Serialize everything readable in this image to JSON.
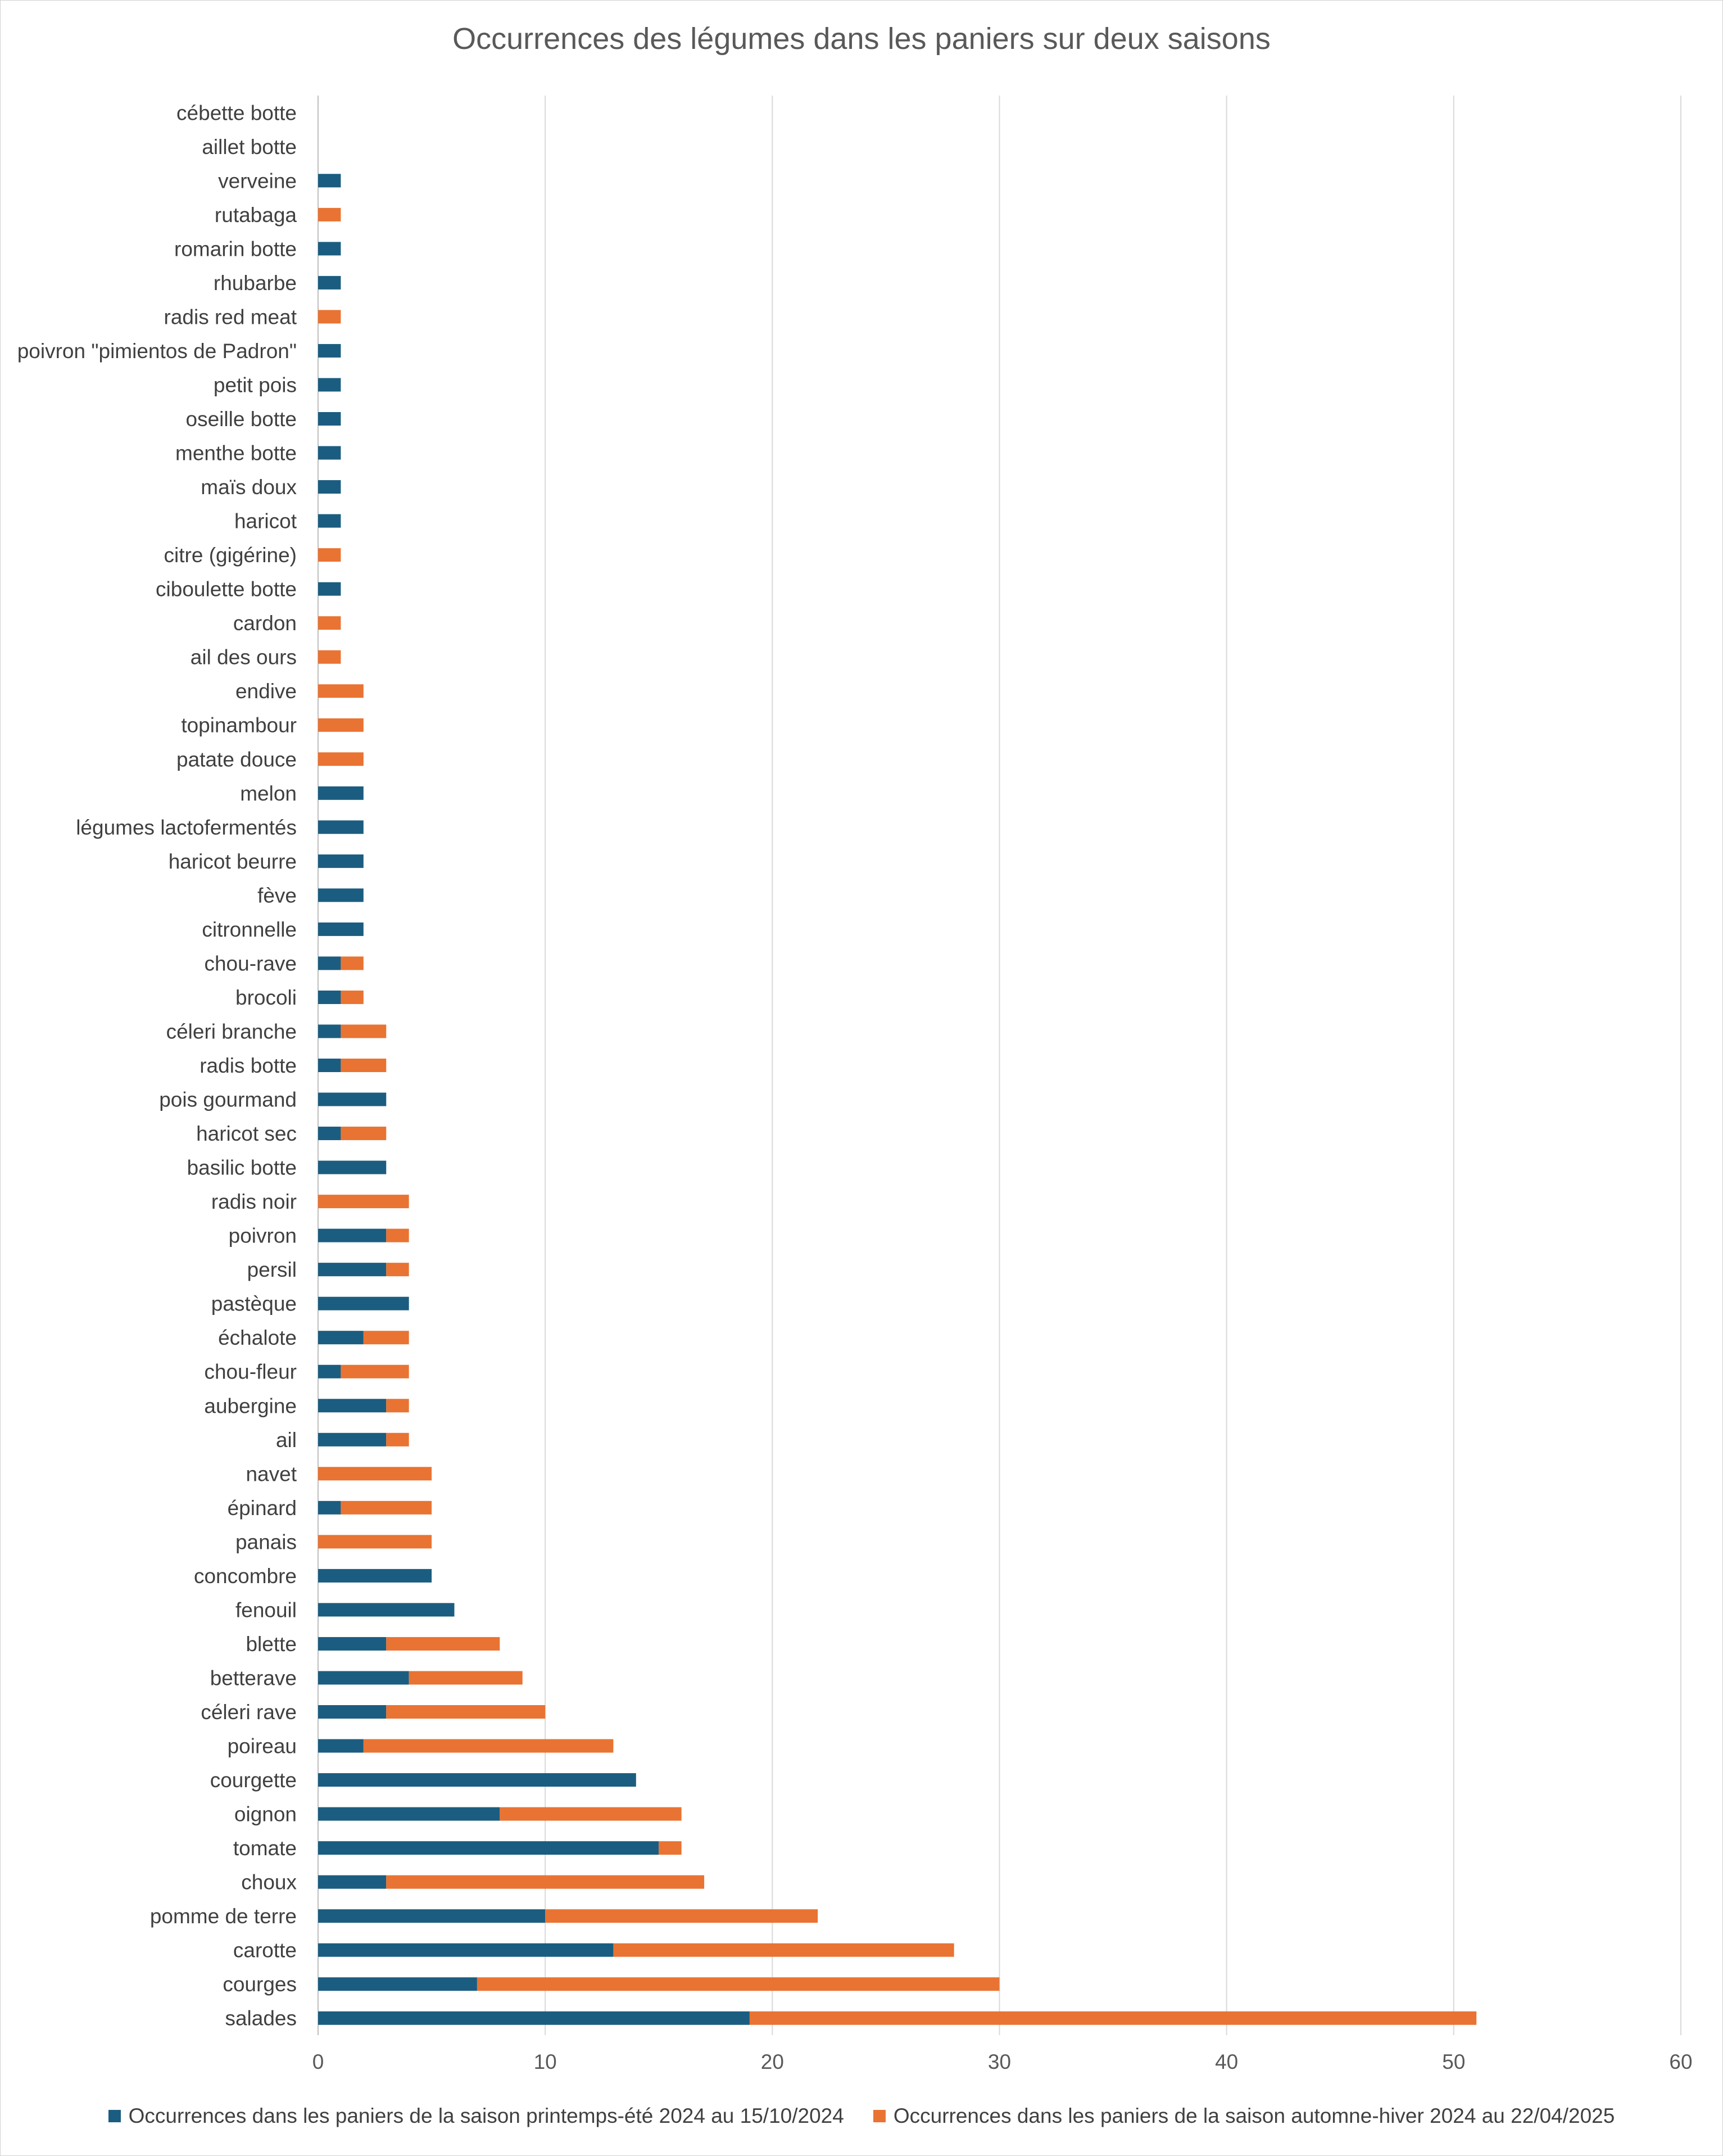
{
  "chart_data": {
    "type": "bar",
    "orientation": "horizontal",
    "stacked": true,
    "title": "Occurrences des légumes dans les paniers sur deux saisons",
    "xlim": [
      0,
      60
    ],
    "x_ticks": [
      0,
      10,
      20,
      30,
      40,
      50,
      60
    ],
    "grid": true,
    "legend_position": "bottom",
    "categories": [
      "cébette botte",
      "aillet botte",
      "verveine",
      "rutabaga",
      "romarin botte",
      "rhubarbe",
      "radis red meat",
      "poivron \"pimientos de Padron\"",
      "petit pois",
      "oseille botte",
      "menthe botte",
      "maïs doux",
      "haricot",
      "citre (gigérine)",
      "ciboulette botte",
      "cardon",
      "ail des ours",
      "endive",
      "topinambour",
      "patate douce",
      "melon",
      "légumes lactofermentés",
      "haricot beurre",
      "fève",
      "citronnelle",
      "chou-rave",
      "brocoli",
      "céleri branche",
      "radis botte",
      "pois gourmand",
      "haricot sec",
      "basilic botte",
      "radis noir",
      "poivron",
      "persil",
      "pastèque",
      "échalote",
      "chou-fleur",
      "aubergine",
      "ail",
      "navet",
      "épinard",
      "panais",
      "concombre",
      "fenouil",
      "blette",
      "betterave",
      "céleri rave",
      "poireau",
      "courgette",
      "oignon",
      "tomate",
      "choux",
      "pomme de terre",
      "carotte",
      "courges",
      "salades"
    ],
    "series": [
      {
        "name": "Occurrences dans les paniers de la saison printemps-été 2024 au 15/10/2024",
        "color": "#1b5d80",
        "values": [
          0,
          0,
          1,
          0,
          1,
          1,
          0,
          1,
          1,
          1,
          1,
          1,
          1,
          0,
          1,
          0,
          0,
          0,
          0,
          0,
          2,
          2,
          2,
          2,
          2,
          1,
          1,
          1,
          1,
          3,
          1,
          3,
          0,
          3,
          3,
          4,
          2,
          1,
          3,
          3,
          0,
          1,
          0,
          5,
          6,
          3,
          4,
          3,
          2,
          14,
          8,
          15,
          3,
          10,
          13,
          7,
          19
        ]
      },
      {
        "name": "Occurrences dans les paniers de la saison automne-hiver 2024 au 22/04/2025",
        "color": "#e97332",
        "values": [
          0,
          0,
          0,
          1,
          0,
          0,
          1,
          0,
          0,
          0,
          0,
          0,
          0,
          1,
          0,
          1,
          1,
          2,
          2,
          2,
          0,
          0,
          0,
          0,
          0,
          1,
          1,
          2,
          2,
          0,
          2,
          0,
          4,
          1,
          1,
          0,
          2,
          3,
          1,
          1,
          5,
          4,
          5,
          0,
          0,
          5,
          5,
          7,
          11,
          0,
          8,
          1,
          14,
          12,
          15,
          23,
          32
        ]
      }
    ]
  }
}
